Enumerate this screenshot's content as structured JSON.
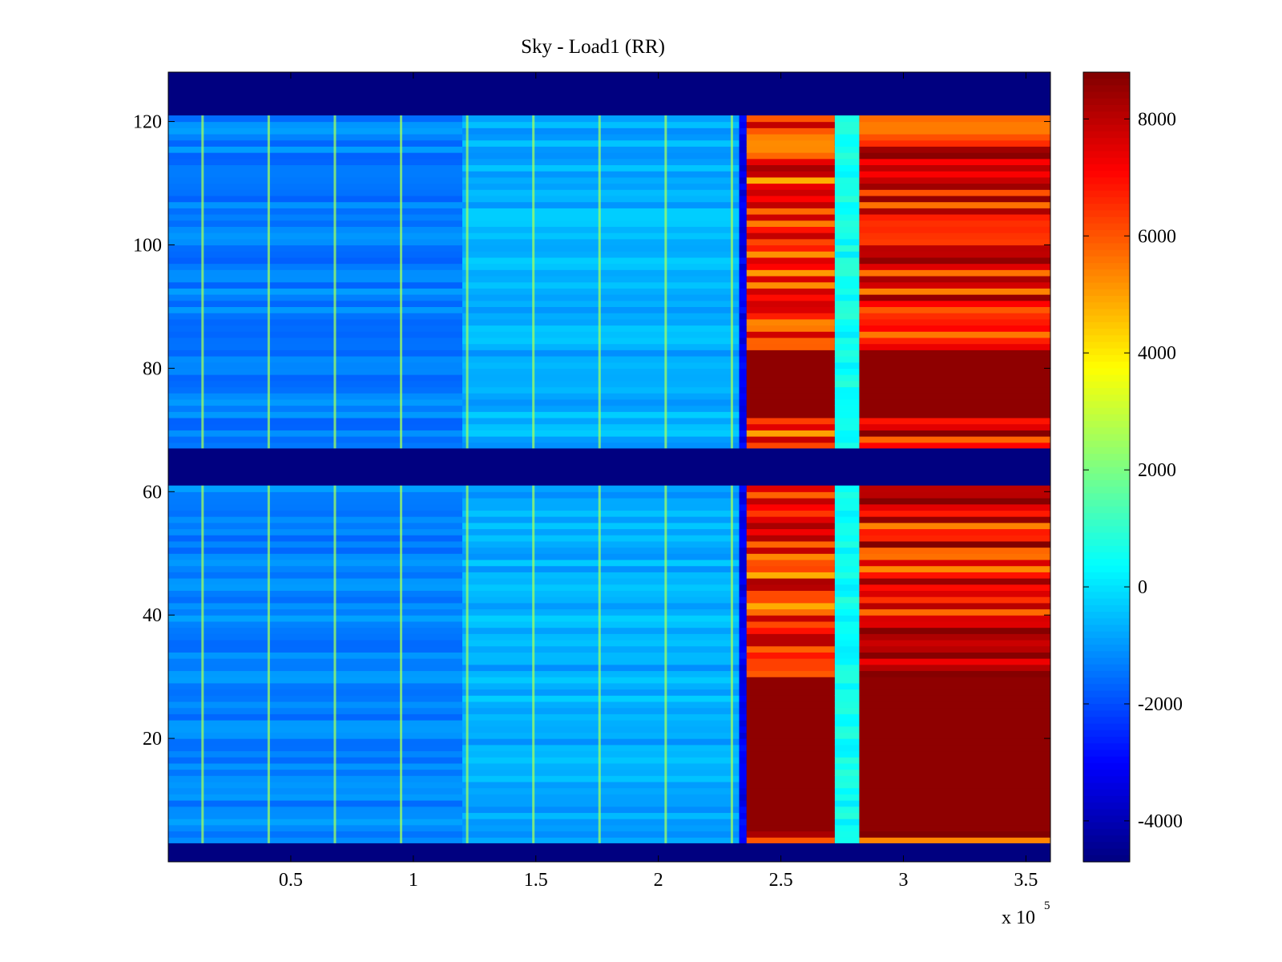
{
  "chart_data": {
    "type": "heatmap",
    "title": "Sky - Load1 (RR)",
    "xlabel": "",
    "ylabel": "",
    "x_multiplier_label": {
      "base": "x 10",
      "exponent": "5"
    },
    "xlim": [
      0,
      360000
    ],
    "ylim": [
      0,
      128
    ],
    "x_ticks": [
      {
        "value": 50000,
        "label": "0.5"
      },
      {
        "value": 100000,
        "label": "1"
      },
      {
        "value": 150000,
        "label": "1.5"
      },
      {
        "value": 200000,
        "label": "2"
      },
      {
        "value": 250000,
        "label": "2.5"
      },
      {
        "value": 300000,
        "label": "3"
      },
      {
        "value": 350000,
        "label": "3.5"
      }
    ],
    "y_ticks": [
      {
        "value": 20,
        "label": "20"
      },
      {
        "value": 40,
        "label": "40"
      },
      {
        "value": 60,
        "label": "60"
      },
      {
        "value": 80,
        "label": "80"
      },
      {
        "value": 100,
        "label": "100"
      },
      {
        "value": 120,
        "label": "120"
      }
    ],
    "colorbar": {
      "colormap": "jet",
      "range": [
        -4700,
        8800
      ],
      "ticks": [
        {
          "value": -4000,
          "label": "-4000"
        },
        {
          "value": -2000,
          "label": "-2000"
        },
        {
          "value": 0,
          "label": "0"
        },
        {
          "value": 2000,
          "label": "2000"
        },
        {
          "value": 4000,
          "label": "4000"
        },
        {
          "value": 6000,
          "label": "6000"
        },
        {
          "value": 8000,
          "label": "8000"
        }
      ]
    },
    "masked_rows": [
      [
        0,
        3
      ],
      [
        61,
        67
      ],
      [
        121,
        128
      ]
    ],
    "regions": [
      {
        "x_range": [
          0,
          120000
        ],
        "value": -1300,
        "description": "sky baseline"
      },
      {
        "x_range": [
          120000,
          233000
        ],
        "value": -700,
        "description": "sky baseline"
      },
      {
        "x_range": [
          233000,
          236000
        ],
        "value": -3200,
        "description": "dip"
      },
      {
        "x_range": [
          236000,
          272000
        ],
        "value": 6500,
        "description": "load excess"
      },
      {
        "x_range": [
          272000,
          282000
        ],
        "value": 500,
        "description": "notch"
      },
      {
        "x_range": [
          282000,
          360000
        ],
        "value": 7000,
        "description": "load excess"
      }
    ],
    "periodic_spikes_x": [
      14000,
      41000,
      68000,
      95000,
      122000,
      149000,
      176000,
      203000,
      230000
    ],
    "periodic_spike_value": 2500
  }
}
